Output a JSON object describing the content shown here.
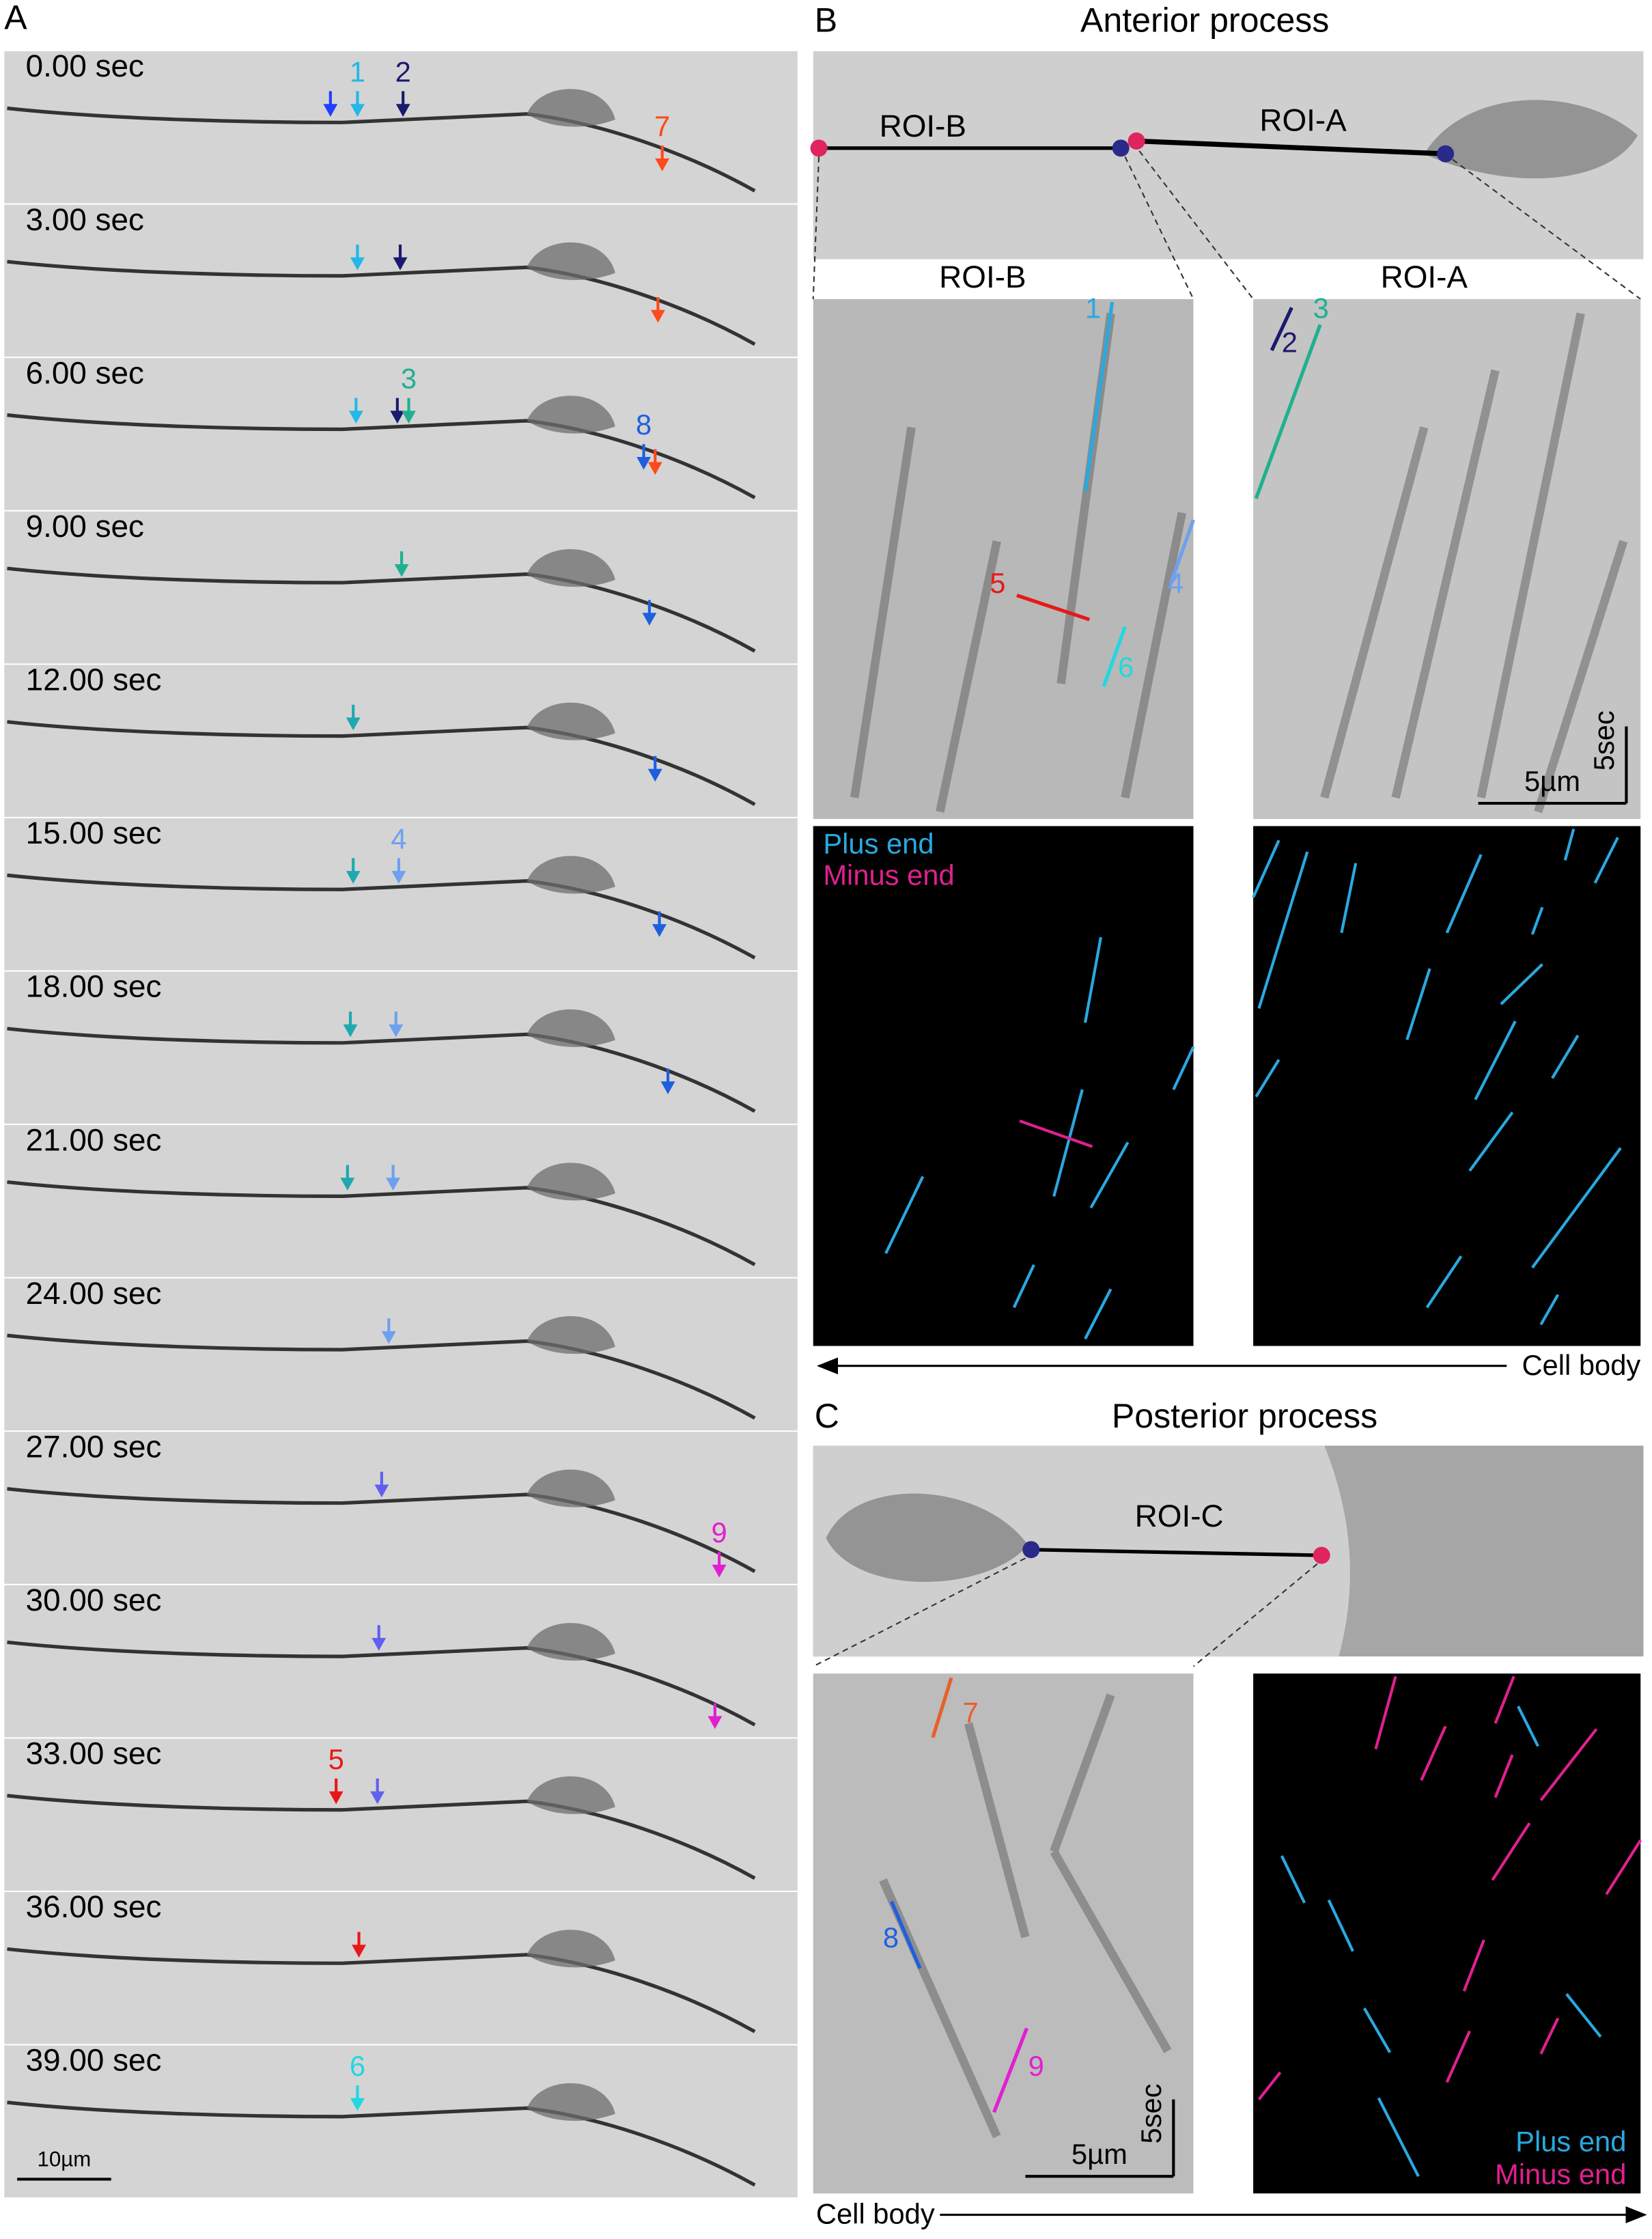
{
  "panel_a": {
    "label": "A",
    "timestamps": [
      "0.00 sec",
      "3.00 sec",
      "6.00 sec",
      "9.00 sec",
      "12.00 sec",
      "15.00 sec",
      "18.00 sec",
      "21.00 sec",
      "24.00 sec",
      "27.00 sec",
      "30.00 sec",
      "33.00 sec",
      "36.00 sec",
      "39.00 sec"
    ],
    "arrow_labels": [
      "1",
      "2",
      "7",
      "3",
      "8",
      "4",
      "9",
      "5",
      "6"
    ],
    "scale_bar": "10µm"
  },
  "panel_b": {
    "label": "B",
    "title": "Anterior process",
    "roi_labels": [
      "ROI-B",
      "ROI-A"
    ],
    "kymo_titles": [
      "ROI-B",
      "ROI-A"
    ],
    "track_labels": [
      "1",
      "2",
      "3",
      "4",
      "5",
      "6"
    ],
    "scale_time": "5sec",
    "scale_space": "5µm",
    "legend": [
      "Plus end",
      "Minus end"
    ],
    "axis_label": "Cell body"
  },
  "panel_c": {
    "label": "C",
    "title": "Posterior process",
    "roi_label": "ROI-C",
    "track_labels": [
      "7",
      "8",
      "9"
    ],
    "scale_time": "5sec",
    "scale_space": "5µm",
    "legend": [
      "Plus end",
      "Minus end"
    ],
    "axis_label": "Cell body"
  }
}
